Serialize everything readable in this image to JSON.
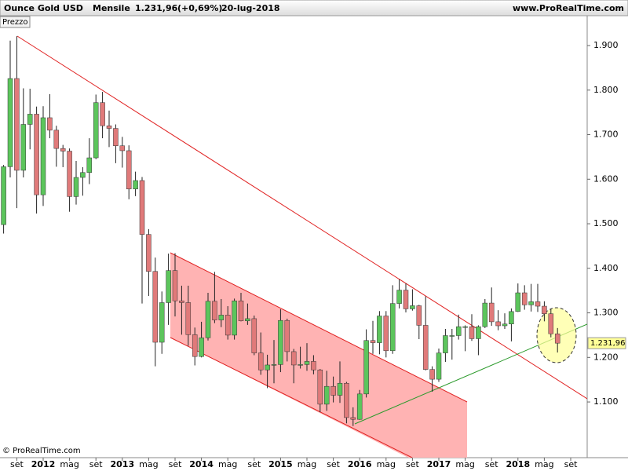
{
  "chart_data": {
    "type": "candlestick",
    "instrument": "Ounce Gold USD",
    "period": "Mensile",
    "change": "(+0,69%)",
    "date": "20-lug-2018",
    "source": "www.ProRealTime.com",
    "panel_label": "Prezzo",
    "copyright": "© ProRealTime.com",
    "last_price": {
      "value": 1231.96,
      "label": "1.231,96"
    },
    "up_color": "#5cc55c",
    "down_color": "#e07a7a",
    "categories": [
      null,
      null,
      "set",
      null,
      null,
      null,
      "2012",
      null,
      null,
      null,
      "mag",
      null,
      null,
      null,
      "set",
      null,
      null,
      null,
      "2013",
      null,
      null,
      null,
      "mag",
      null,
      null,
      null,
      "set",
      null,
      null,
      null,
      "2014",
      null,
      null,
      null,
      "mag",
      null,
      null,
      null,
      "set",
      null,
      null,
      null,
      "2015",
      null,
      null,
      null,
      "mag",
      null,
      null,
      null,
      "set",
      null,
      null,
      null,
      "2016",
      null,
      null,
      null,
      "mag",
      null,
      null,
      null,
      "set",
      null,
      null,
      null,
      "2017",
      null,
      null,
      null,
      "mag",
      null,
      null,
      null,
      "set",
      null,
      null,
      null,
      "2018",
      null,
      null,
      null,
      "mag",
      null,
      null,
      null,
      "set"
    ],
    "open": [
      1498,
      1628,
      1826,
      1620,
      1723,
      1746,
      1565,
      1738,
      1710,
      1669,
      1663,
      1561,
      1604,
      1615,
      1648,
      1772,
      1720,
      1714,
      1675,
      1664,
      1578,
      1597,
      1476,
      1393,
      1234,
      1323,
      1395,
      1327,
      1323,
      1251,
      1202,
      1244,
      1326,
      1284,
      1295,
      1250,
      1327,
      1282,
      1287,
      1210,
      1172,
      1183,
      1184,
      1283,
      1213,
      1183,
      1184,
      1191,
      1172,
      1095,
      1135,
      1115,
      1142,
      1065,
      1061,
      1118,
      1238,
      1233,
      1293,
      1215,
      1321,
      1351,
      1309,
      1316,
      1272,
      1173,
      1151,
      1210,
      1249,
      1249,
      1269,
      1269,
      1242,
      1269,
      1322,
      1280,
      1271,
      1275,
      1303,
      1345,
      1318,
      1325,
      1315,
      1298,
      1253,
      null,
      null
    ],
    "high": [
      1632,
      1911,
      1921,
      1804,
      1803,
      1763,
      1764,
      1791,
      1720,
      1677,
      1669,
      1641,
      1627,
      1692,
      1790,
      1796,
      1754,
      1723,
      1695,
      1676,
      1617,
      1605,
      1488,
      1424,
      1348,
      1433,
      1434,
      1361,
      1361,
      1267,
      1280,
      1345,
      1392,
      1331,
      1315,
      1332,
      1345,
      1321,
      1294,
      1256,
      1206,
      1239,
      1308,
      1287,
      1219,
      1224,
      1232,
      1205,
      1174,
      1170,
      1157,
      1191,
      1145,
      1088,
      1127,
      1263,
      1282,
      1304,
      1304,
      1362,
      1375,
      1366,
      1353,
      1318,
      1337,
      1180,
      1220,
      1264,
      1264,
      1296,
      1272,
      1297,
      1272,
      1331,
      1357,
      1306,
      1299,
      1310,
      1366,
      1362,
      1365,
      1365,
      1326,
      1309,
      1266,
      null,
      null
    ],
    "low": [
      1478,
      1604,
      1535,
      1604,
      1667,
      1523,
      1540,
      1692,
      1628,
      1627,
      1527,
      1543,
      1563,
      1589,
      1645,
      1692,
      1672,
      1636,
      1626,
      1555,
      1562,
      1321,
      1338,
      1180,
      1208,
      1273,
      1292,
      1251,
      1226,
      1182,
      1200,
      1238,
      1277,
      1268,
      1240,
      1240,
      1281,
      1273,
      1205,
      1161,
      1131,
      1142,
      1167,
      1191,
      1142,
      1175,
      1170,
      1162,
      1077,
      1080,
      1099,
      1098,
      1052,
      1046,
      1060,
      1110,
      1208,
      1207,
      1200,
      1208,
      1310,
      1301,
      1305,
      1241,
      1171,
      1123,
      1145,
      1190,
      1195,
      1240,
      1214,
      1237,
      1205,
      1266,
      1271,
      1261,
      1264,
      1236,
      1302,
      1307,
      1303,
      1302,
      1281,
      1245,
      1211,
      null,
      null
    ],
    "close": [
      1628,
      1826,
      1620,
      1723,
      1746,
      1565,
      1738,
      1710,
      1669,
      1663,
      1561,
      1604,
      1615,
      1648,
      1772,
      1720,
      1714,
      1675,
      1664,
      1578,
      1597,
      1476,
      1393,
      1234,
      1323,
      1395,
      1327,
      1323,
      1251,
      1202,
      1244,
      1326,
      1284,
      1295,
      1250,
      1327,
      1282,
      1287,
      1210,
      1172,
      1183,
      1184,
      1283,
      1213,
      1183,
      1184,
      1191,
      1172,
      1095,
      1135,
      1115,
      1142,
      1065,
      1061,
      1118,
      1238,
      1233,
      1293,
      1215,
      1321,
      1351,
      1309,
      1316,
      1272,
      1173,
      1151,
      1210,
      1249,
      1249,
      1269,
      1269,
      1242,
      1269,
      1322,
      1280,
      1271,
      1275,
      1303,
      1345,
      1318,
      1325,
      1315,
      1298,
      1253,
      1231.96,
      null,
      null
    ],
    "ylim": [
      975,
      1967
    ],
    "yticks": [
      {
        "value": 1100,
        "label": "1.100"
      },
      {
        "value": 1200,
        "label": "1.200"
      },
      {
        "value": 1300,
        "label": "1.300"
      },
      {
        "value": 1400,
        "label": "1.400"
      },
      {
        "value": 1500,
        "label": "1.500"
      },
      {
        "value": 1600,
        "label": "1.600"
      },
      {
        "value": 1700,
        "label": "1.700"
      },
      {
        "value": 1800,
        "label": "1.800"
      },
      {
        "value": 1900,
        "label": "1.900"
      }
    ]
  }
}
